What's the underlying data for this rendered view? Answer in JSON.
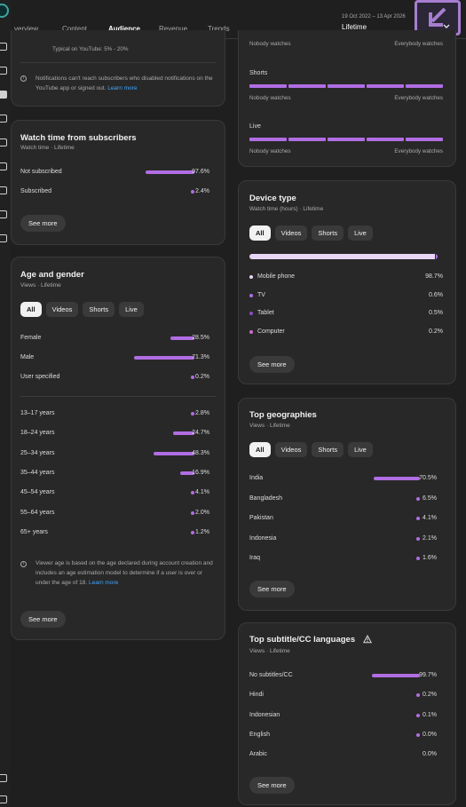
{
  "tabs": [
    {
      "label": "verview",
      "active": false
    },
    {
      "label": "Content",
      "active": false
    },
    {
      "label": "Audience",
      "active": true
    },
    {
      "label": "Revenue",
      "active": false
    },
    {
      "label": "Trends",
      "active": false
    }
  ],
  "header": {
    "date_range": "19 Oct 2022 – 13 Apr 2026",
    "period": "Lifetime"
  },
  "notifications_card": {
    "typical_text": "Typical on YouTube: 5% - 20%",
    "note": "Notifications can't reach subscribers who disabled notifications on the YouTube app or signed out.",
    "link": "Learn more"
  },
  "watch_time_subscribers": {
    "title": "Watch time from subscribers",
    "subtitle": "Watch time · Lifetime",
    "rows": [
      {
        "label": "Not subscribed",
        "value": "97.6%",
        "pct": 97.6
      },
      {
        "label": "Subscribed",
        "value": "2.4%",
        "pct": 2.4
      }
    ],
    "see_more": "See more"
  },
  "age_gender": {
    "title": "Age and gender",
    "subtitle": "Views · Lifetime",
    "filters": [
      "All",
      "Videos",
      "Shorts",
      "Live"
    ],
    "gender_rows": [
      {
        "label": "Female",
        "value": "28.5%",
        "pct": 28.5
      },
      {
        "label": "Male",
        "value": "71.3%",
        "pct": 71.3
      },
      {
        "label": "User specified",
        "value": "0.2%",
        "pct": 0.2
      }
    ],
    "age_rows": [
      {
        "label": "13–17 years",
        "value": "2.8%",
        "pct": 2.8
      },
      {
        "label": "18–24 years",
        "value": "24.7%",
        "pct": 24.7
      },
      {
        "label": "25–34 years",
        "value": "48.3%",
        "pct": 48.3
      },
      {
        "label": "35–44 years",
        "value": "16.9%",
        "pct": 16.9
      },
      {
        "label": "45–54 years",
        "value": "4.1%",
        "pct": 4.1
      },
      {
        "label": "55–64 years",
        "value": "2.0%",
        "pct": 2.0
      },
      {
        "label": "65+ years",
        "value": "1.2%",
        "pct": 1.2
      }
    ],
    "note": "Viewer age is based on the age declared during account creation and includes an age estimation model to determine if a user is over or under the age of 18.",
    "link": "Learn more",
    "see_more": "See more"
  },
  "notification_tracks": {
    "track_left": "Nobody watches",
    "track_right": "Everybody watches",
    "top_left": "Nobody watches",
    "top_right": "Everybody watches",
    "shorts_title": "Shorts",
    "live_title": "Live"
  },
  "device_type": {
    "title": "Device type",
    "subtitle": "Watch time (hours) · Lifetime",
    "filters": [
      "All",
      "Videos",
      "Shorts",
      "Live"
    ],
    "items": [
      {
        "label": "Mobile phone",
        "value": "98.7%",
        "pct": 98.7,
        "color": "#e8d6f7"
      },
      {
        "label": "TV",
        "value": "0.6%",
        "pct": 0.6,
        "color": "#b16de3"
      },
      {
        "label": "Tablet",
        "value": "0.5%",
        "pct": 0.5,
        "color": "#8a4dc4"
      },
      {
        "label": "Computer",
        "value": "0.2%",
        "pct": 0.2,
        "color": "#d36ad0"
      }
    ],
    "see_more": "See more"
  },
  "top_geographies": {
    "title": "Top geographies",
    "subtitle": "Views · Lifetime",
    "filters": [
      "All",
      "Videos",
      "Shorts",
      "Live"
    ],
    "rows": [
      {
        "label": "India",
        "value": "70.5%",
        "pct": 70.5
      },
      {
        "label": "Bangladesh",
        "value": "6.5%",
        "pct": 6.5
      },
      {
        "label": "Pakistan",
        "value": "4.1%",
        "pct": 4.1
      },
      {
        "label": "Indonesia",
        "value": "2.1%",
        "pct": 2.1
      },
      {
        "label": "Iraq",
        "value": "1.6%",
        "pct": 1.6
      }
    ],
    "see_more": "See more"
  },
  "subtitle_languages": {
    "title": "Top subtitle/CC languages",
    "subtitle": "Views · Lifetime",
    "rows": [
      {
        "label": "No subtitles/CC",
        "value": "99.7%",
        "pct": 99.7
      },
      {
        "label": "Hindi",
        "value": "0.2%",
        "pct": 0.2
      },
      {
        "label": "Indonesian",
        "value": "0.1%",
        "pct": 0.1
      },
      {
        "label": "English",
        "value": "0.0%",
        "pct": 0.04
      },
      {
        "label": "Arabic",
        "value": "0.0%",
        "pct": 0
      }
    ],
    "see_more": "See more"
  },
  "colors": {
    "accent": "#b16de3",
    "link": "#3ea6ff",
    "card": "#282828",
    "background": "#1f1f1f"
  }
}
